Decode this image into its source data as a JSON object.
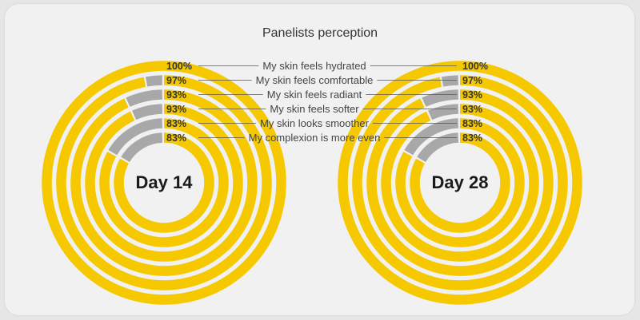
{
  "chart_data": {
    "type": "radial-bar",
    "title": "Panelists perception",
    "categories": [
      "My skin feels hydrated",
      "My skin feels comfortable",
      "My skin feels radiant",
      "My skin feels softer",
      "My skin looks smoother",
      "My complexion is more even"
    ],
    "charts": [
      {
        "label": "Day 14",
        "values": [
          100,
          97,
          93,
          93,
          83,
          83
        ],
        "value_labels": [
          "100%",
          "97%",
          "93%",
          "93%",
          "83%",
          "83%"
        ]
      },
      {
        "label": "Day 28",
        "values": [
          100,
          97,
          93,
          93,
          83,
          83
        ],
        "value_labels": [
          "100%",
          "97%",
          "93%",
          "93%",
          "83%",
          "83%"
        ]
      }
    ],
    "colors": {
      "agree": "#f5c800",
      "remainder": "#a8a8a8",
      "gap": "#ffffff"
    }
  }
}
